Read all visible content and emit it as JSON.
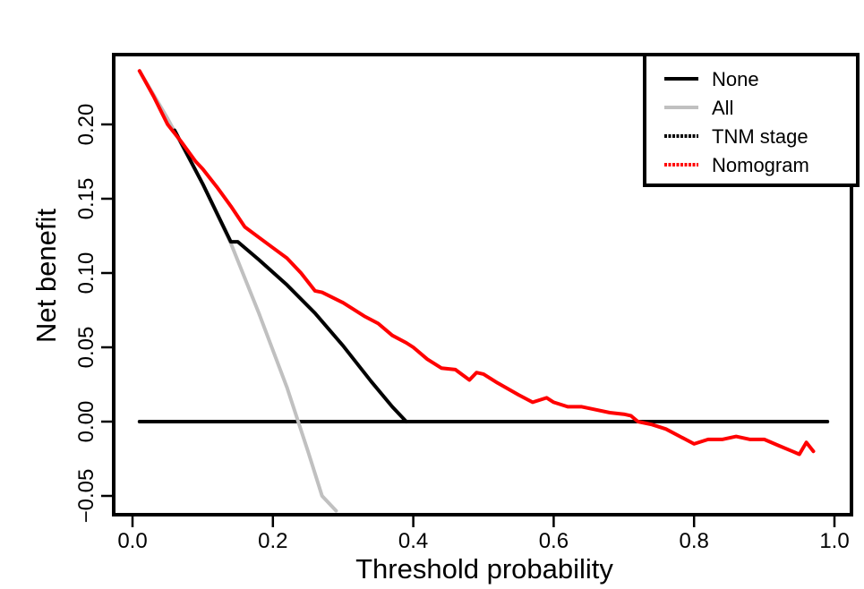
{
  "chart_data": {
    "type": "line",
    "title": "",
    "xlabel": "Threshold probability",
    "ylabel": "Net benefit",
    "xlim": [
      0.0,
      1.0
    ],
    "ylim": [
      -0.06,
      0.24
    ],
    "xticks": [
      0.0,
      0.2,
      0.4,
      0.6,
      0.8,
      1.0
    ],
    "xtick_labels": [
      "0.0",
      "0.2",
      "0.4",
      "0.6",
      "0.8",
      "1.0"
    ],
    "yticks": [
      -0.05,
      0.0,
      0.05,
      0.1,
      0.15,
      0.2
    ],
    "ytick_labels": [
      "−0.05",
      "0.00",
      "0.05",
      "0.10",
      "0.15",
      "0.20"
    ],
    "grid": false,
    "legend_position": "top-right",
    "series": [
      {
        "name": "None",
        "color": "#000000",
        "style": "solid",
        "x": [
          0.01,
          0.99
        ],
        "y": [
          0.0,
          0.0
        ]
      },
      {
        "name": "All",
        "color": "#c0c0c0",
        "style": "solid",
        "x": [
          0.01,
          0.05,
          0.1,
          0.14,
          0.18,
          0.22,
          0.25,
          0.27,
          0.29
        ],
        "y": [
          0.236,
          0.204,
          0.16,
          0.12,
          0.073,
          0.023,
          -0.02,
          -0.05,
          -0.06
        ]
      },
      {
        "name": "TNM stage",
        "color": "#000000",
        "style": "dotted",
        "x": [
          0.06,
          0.1,
          0.14,
          0.15,
          0.18,
          0.22,
          0.26,
          0.3,
          0.34,
          0.37,
          0.39
        ],
        "y": [
          0.196,
          0.16,
          0.121,
          0.121,
          0.109,
          0.092,
          0.073,
          0.051,
          0.027,
          0.01,
          0.0
        ]
      },
      {
        "name": "Nomogram",
        "color": "#ff0000",
        "style": "dotted",
        "x": [
          0.01,
          0.03,
          0.05,
          0.07,
          0.09,
          0.1,
          0.12,
          0.14,
          0.16,
          0.18,
          0.2,
          0.22,
          0.24,
          0.26,
          0.27,
          0.3,
          0.33,
          0.35,
          0.37,
          0.39,
          0.4,
          0.42,
          0.44,
          0.46,
          0.48,
          0.49,
          0.5,
          0.52,
          0.55,
          0.57,
          0.59,
          0.6,
          0.62,
          0.64,
          0.66,
          0.68,
          0.7,
          0.71,
          0.72,
          0.74,
          0.76,
          0.78,
          0.8,
          0.82,
          0.84,
          0.86,
          0.88,
          0.9,
          0.92,
          0.94,
          0.95,
          0.96,
          0.97
        ],
        "y": [
          0.236,
          0.219,
          0.2,
          0.188,
          0.175,
          0.17,
          0.158,
          0.145,
          0.131,
          0.124,
          0.117,
          0.11,
          0.1,
          0.088,
          0.087,
          0.08,
          0.071,
          0.066,
          0.058,
          0.053,
          0.05,
          0.042,
          0.036,
          0.035,
          0.028,
          0.033,
          0.032,
          0.026,
          0.018,
          0.013,
          0.016,
          0.013,
          0.01,
          0.01,
          0.008,
          0.006,
          0.005,
          0.004,
          0.0,
          -0.002,
          -0.005,
          -0.01,
          -0.015,
          -0.012,
          -0.012,
          -0.01,
          -0.012,
          -0.012,
          -0.016,
          -0.02,
          -0.022,
          -0.014,
          -0.02
        ]
      }
    ]
  }
}
